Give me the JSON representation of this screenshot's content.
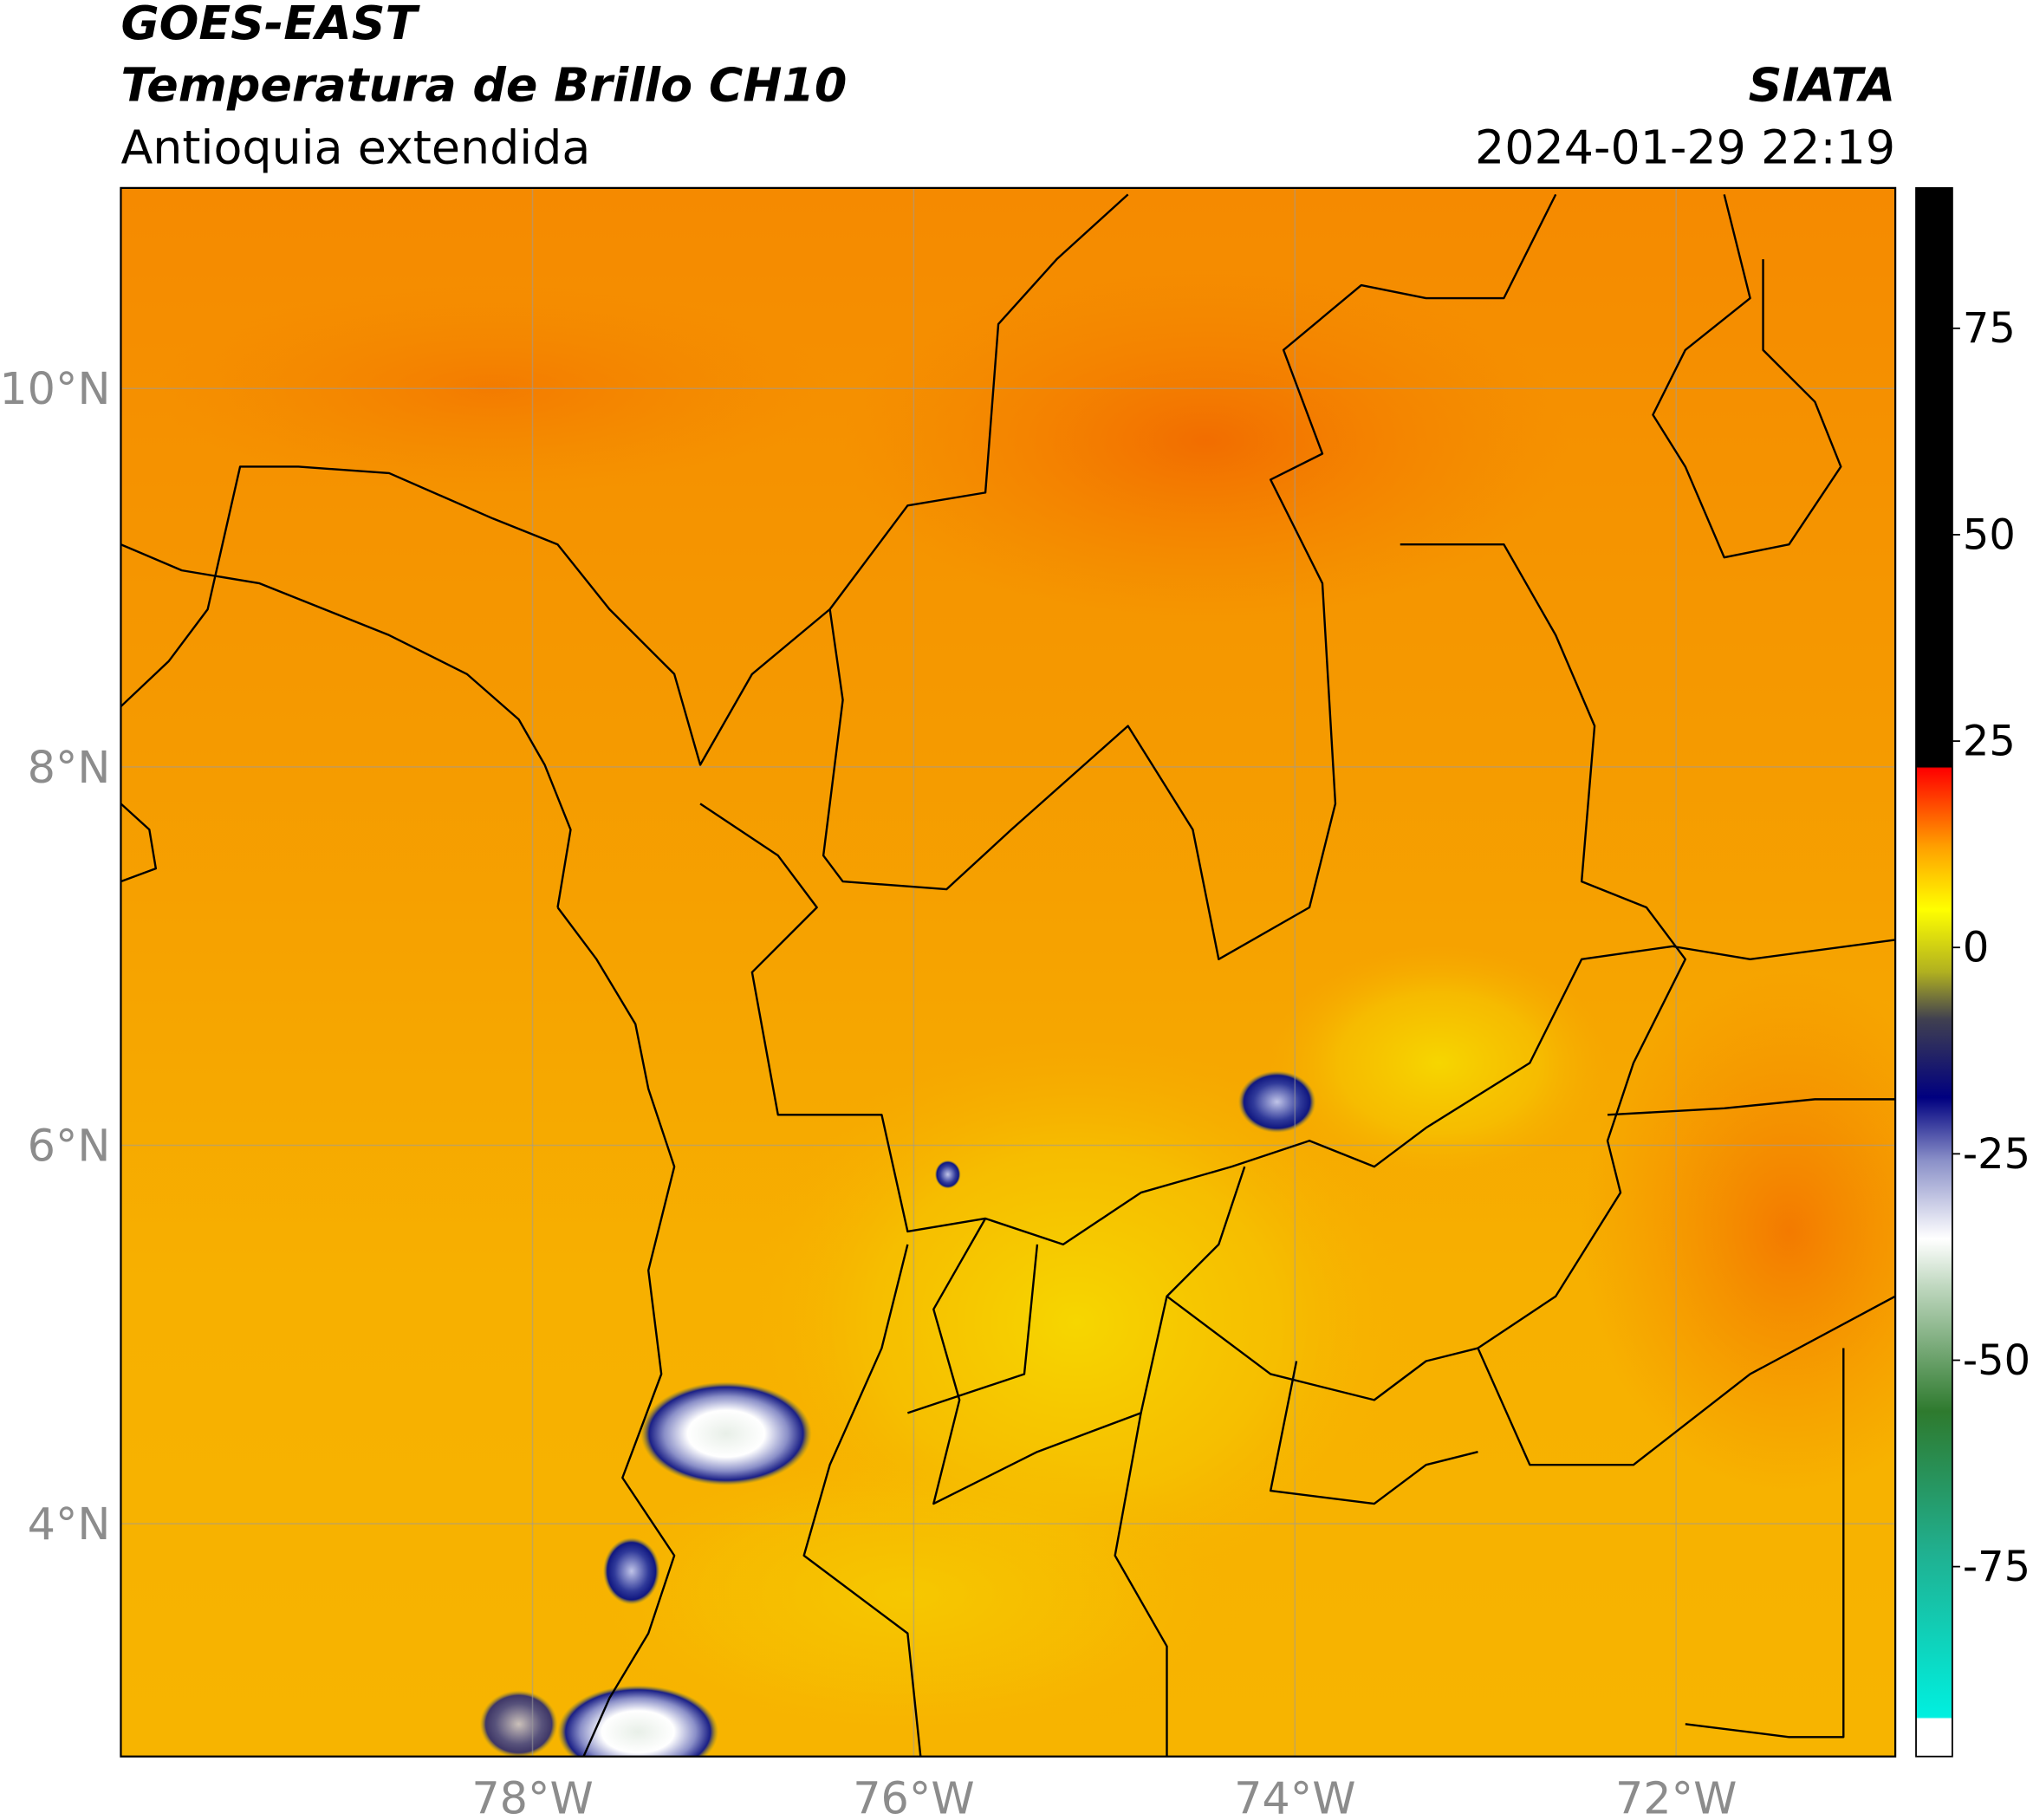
{
  "chart_data": {
    "type": "map",
    "title": "GOES-EAST",
    "subtitle": "Temperatura de Brillo CH10",
    "region": "Antioquia extendida",
    "source": "SIATA",
    "datetime": "2024-01-29 22:19",
    "xlim": [
      -80.16,
      -70.85
    ],
    "ylim": [
      2.77,
      11.06
    ],
    "xticks": [
      {
        "value": -78,
        "label": "78°W"
      },
      {
        "value": -76,
        "label": "76°W"
      },
      {
        "value": -74,
        "label": "74°W"
      },
      {
        "value": -72,
        "label": "72°W"
      }
    ],
    "yticks": [
      {
        "value": 4,
        "label": "4°N"
      },
      {
        "value": 6,
        "label": "6°N"
      },
      {
        "value": 8,
        "label": "8°N"
      },
      {
        "value": 10,
        "label": "10°N"
      }
    ],
    "grid": true,
    "colorbar": {
      "lim": [
        -98,
        92
      ],
      "ticks": [
        -75,
        -50,
        -25,
        0,
        25,
        50,
        75
      ]
    }
  }
}
